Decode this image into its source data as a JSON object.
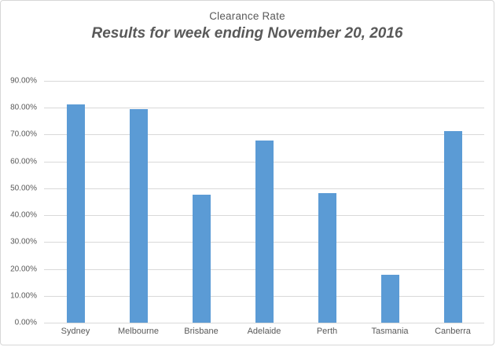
{
  "chart": {
    "title": "Clearance Rate",
    "subtitle": "Results for week ending November 20, 2016"
  },
  "chart_data": {
    "type": "bar",
    "title": "Clearance Rate",
    "subtitle": "Results for week ending November 20, 2016",
    "categories": [
      "Sydney",
      "Melbourne",
      "Brisbane",
      "Adelaide",
      "Perth",
      "Tasmania",
      "Canberra"
    ],
    "values": [
      81.3,
      79.5,
      47.6,
      67.7,
      48.2,
      17.9,
      71.3
    ],
    "value_unit": "%",
    "xlabel": "",
    "ylabel": "",
    "ylim": [
      0,
      90
    ],
    "ytick_step": 10,
    "ytick_labels": [
      "0.00%",
      "10.00%",
      "20.00%",
      "30.00%",
      "40.00%",
      "50.00%",
      "60.00%",
      "70.00%",
      "80.00%",
      "90.00%"
    ],
    "grid": true,
    "legend": false,
    "colors": {
      "bar": "#5b9bd5",
      "gridline": "#d9d9d9",
      "text": "#595959",
      "frame_border": "#d7d7d7",
      "background": "#ffffff"
    }
  }
}
